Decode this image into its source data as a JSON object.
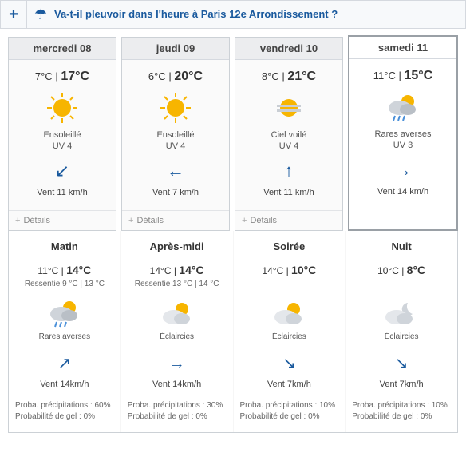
{
  "topbar": {
    "plus": "+",
    "question": "Va-t-il pleuvoir dans l'heure à Paris 12e Arrondissement ?"
  },
  "days": [
    {
      "name": "mercredi 08",
      "lo": "7°C",
      "hi": "17°C",
      "icon": "sun",
      "cond": "Ensoleillé",
      "uv": "UV 4",
      "arrow": "↙",
      "wind": "Vent 11 km/h",
      "details": "Détails",
      "selected": false
    },
    {
      "name": "jeudi 09",
      "lo": "6°C",
      "hi": "20°C",
      "icon": "sun",
      "cond": "Ensoleillé",
      "uv": "UV 4",
      "arrow": "←",
      "wind": "Vent 7 km/h",
      "details": "Détails",
      "selected": false
    },
    {
      "name": "vendredi 10",
      "lo": "8°C",
      "hi": "21°C",
      "icon": "hazy",
      "cond": "Ciel voilé",
      "uv": "UV 4",
      "arrow": "↑",
      "wind": "Vent 11 km/h",
      "details": "Détails",
      "selected": false
    },
    {
      "name": "samedi 11",
      "lo": "11°C",
      "hi": "15°C",
      "icon": "rain",
      "cond": "Rares averses",
      "uv": "UV 3",
      "arrow": "→",
      "wind": "Vent 14 km/h",
      "details": "",
      "selected": true
    }
  ],
  "periods": [
    {
      "name": "Matin",
      "lo": "11°C",
      "hi": "14°C",
      "feels": "Ressentie 9 °C | 13 °C",
      "icon": "rain",
      "cond": "Rares averses",
      "arrow": "↗",
      "wind": "Vent 14km/h",
      "precip": "Proba. précipitations : 60%",
      "gel": "Probabilité de gel : 0%"
    },
    {
      "name": "Après-midi",
      "lo": "14°C",
      "hi": "14°C",
      "feels": "Ressentie 13 °C | 14 °C",
      "icon": "partly",
      "cond": "Éclaircies",
      "arrow": "→",
      "wind": "Vent 14km/h",
      "precip": "Proba. précipitations : 30%",
      "gel": "Probabilité de gel : 0%"
    },
    {
      "name": "Soirée",
      "lo": "14°C",
      "hi": "10°C",
      "feels": "",
      "icon": "partly",
      "cond": "Éclaircies",
      "arrow": "↘",
      "wind": "Vent 7km/h",
      "precip": "Proba. précipitations : 10%",
      "gel": "Probabilité de gel : 0%"
    },
    {
      "name": "Nuit",
      "lo": "10°C",
      "hi": "8°C",
      "feels": "",
      "icon": "night",
      "cond": "Éclaircies",
      "arrow": "↘",
      "wind": "Vent 7km/h",
      "precip": "Proba. précipitations : 10%",
      "gel": "Probabilité de gel : 0%"
    }
  ]
}
